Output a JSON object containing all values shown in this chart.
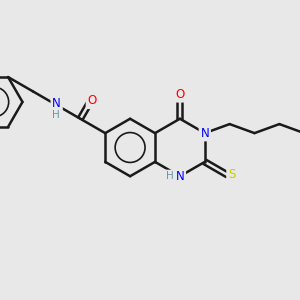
{
  "background_color": "#e8e8e8",
  "bond_color": "#1a1a1a",
  "bond_width": 1.8,
  "atom_colors": {
    "N": "#0000ff",
    "O": "#ff0000",
    "S": "#cccc00",
    "NH": "#6699aa",
    "C": "#1a1a1a"
  },
  "figsize": [
    3.0,
    3.0
  ],
  "dpi": 100,
  "xlim": [
    0,
    12
  ],
  "ylim": [
    0,
    10
  ]
}
